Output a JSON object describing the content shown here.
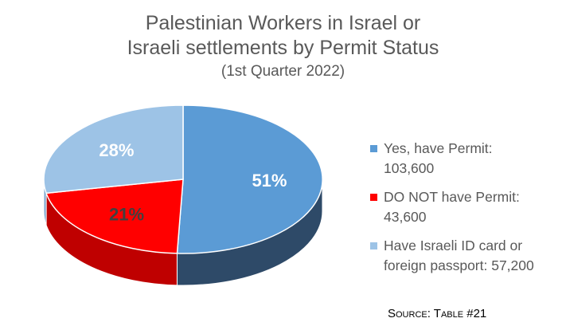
{
  "chart_data": {
    "type": "pie",
    "title_lines": [
      "Palestinian Workers in Israel or",
      "Israeli settlements by Permit Status"
    ],
    "subtitle": "(1st Quarter 2022)",
    "slices": [
      {
        "label": "Yes, have Permit: 103,600",
        "value": 103600,
        "percent_label": "51%",
        "color": "#5b9bd5",
        "side_color": "#2e4a68",
        "label_color": "#ffffff"
      },
      {
        "label": "DO NOT have Permit: 43,600",
        "value": 43600,
        "percent_label": "21%",
        "color": "#ff0000",
        "side_color": "#bf0000",
        "label_color": "#404040"
      },
      {
        "label": "Have Israeli ID card or foreign passport: 57,200",
        "value": 57200,
        "percent_label": "28%",
        "color": "#9dc3e6",
        "side_color": "#7aa6cf",
        "label_color": "#ffffff"
      }
    ],
    "legend_position": "right",
    "style": "3d-tilted"
  },
  "legend": {
    "items": [
      {
        "line1": "Yes, have Permit:",
        "line2": "103,600",
        "color": "#5b9bd5"
      },
      {
        "line1": "DO NOT have Permit:",
        "line2": "43,600",
        "color": "#ff0000"
      },
      {
        "line1": "Have Israeli ID card or",
        "line2": "foreign passport: 57,200",
        "color": "#9dc3e6"
      }
    ]
  },
  "source": "Source: Table #21"
}
